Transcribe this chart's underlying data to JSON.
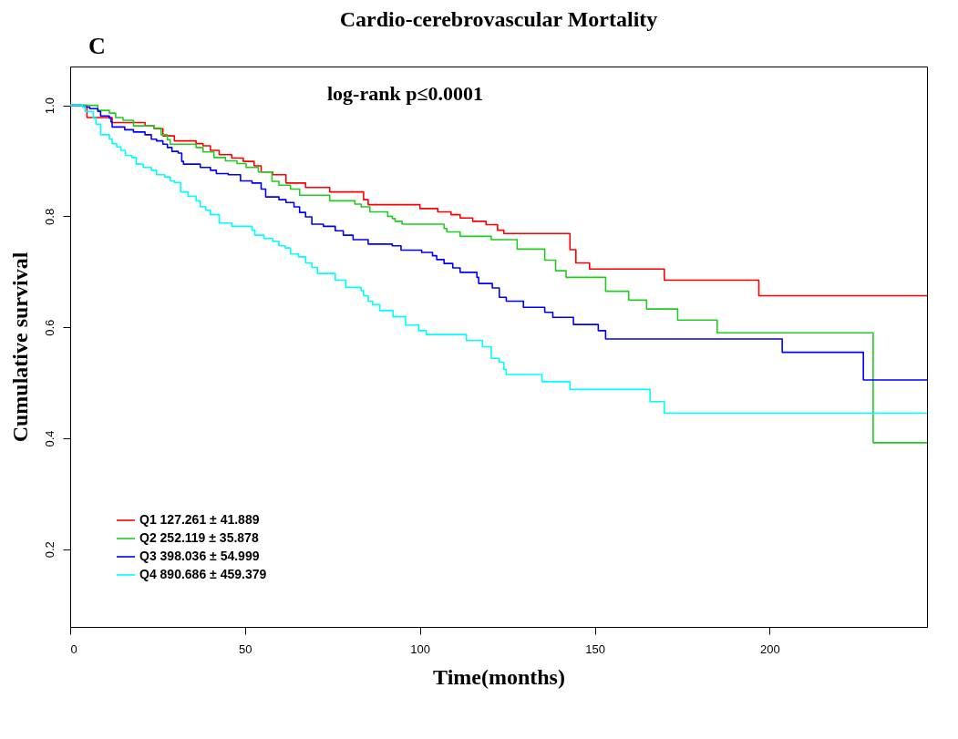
{
  "chart_data": {
    "type": "step",
    "title": "Cardio-cerebrovascular Mortality",
    "xlabel": "Time(months)",
    "ylabel": "Cumulative survival",
    "annotations": [
      "C",
      "log-rank p≤0.0001"
    ],
    "xlim": [
      0,
      245
    ],
    "ylim": [
      0.06,
      1.07
    ],
    "xticks": [
      0,
      50,
      100,
      150,
      200
    ],
    "yticks": [
      0.2,
      0.4,
      0.6,
      0.8,
      {
        "value": 1,
        "label": "1.0"
      }
    ],
    "grid": false,
    "legend": "bottom left",
    "marker": "none",
    "line_style": "solid",
    "series": [
      {
        "name": "Q1 127.261 ± 41.889",
        "color": "#ff0000",
        "x": [
          0,
          4.8,
          12.0,
          21.4,
          24.0,
          26.5,
          29.8,
          36.0,
          38.0,
          40.1,
          42.6,
          46.2,
          49.5,
          52.6,
          54.6,
          57.9,
          61.7,
          67.3,
          74.2,
          83.9,
          85.2,
          100,
          105.1,
          108.9,
          111.5,
          115.1,
          118.9,
          122.2,
          124.0,
          142.9,
          144.6,
          148.5,
          169.9,
          196.9,
          245
        ],
        "values": [
          1.0,
          0.978,
          0.969,
          0.963,
          0.958,
          0.945,
          0.936,
          0.931,
          0.927,
          0.919,
          0.911,
          0.905,
          0.899,
          0.891,
          0.88,
          0.875,
          0.86,
          0.852,
          0.844,
          0.83,
          0.821,
          0.814,
          0.808,
          0.803,
          0.797,
          0.791,
          0.785,
          0.775,
          0.769,
          0.74,
          0.716,
          0.705,
          0.685,
          0.657,
          0.657
        ]
      },
      {
        "name": "Q2 252.119 ± 35.878",
        "color": "#22cc22",
        "x": [
          0,
          7.9,
          11.2,
          13.0,
          15.1,
          18.1,
          24.0,
          26.0,
          27.8,
          28.6,
          36.0,
          38.0,
          41.1,
          44.4,
          47.7,
          50.3,
          53.8,
          57.7,
          59.7,
          63.0,
          65.6,
          74.2,
          81.4,
          83.2,
          85.7,
          90.8,
          92.1,
          92.9,
          94.9,
          106.9,
          107.7,
          111.5,
          120.4,
          127.8,
          135.7,
          138.8,
          141.8,
          153.1,
          159.7,
          164.8,
          173.7,
          185.0,
          229.6,
          245
        ],
        "values": [
          1.0,
          0.991,
          0.986,
          0.978,
          0.973,
          0.963,
          0.959,
          0.947,
          0.938,
          0.93,
          0.924,
          0.916,
          0.906,
          0.9,
          0.895,
          0.888,
          0.88,
          0.863,
          0.856,
          0.849,
          0.838,
          0.828,
          0.822,
          0.817,
          0.808,
          0.8,
          0.796,
          0.791,
          0.786,
          0.778,
          0.772,
          0.764,
          0.758,
          0.741,
          0.721,
          0.702,
          0.69,
          0.665,
          0.649,
          0.633,
          0.613,
          0.59,
          0.392,
          0.392
        ]
      },
      {
        "name": "Q3 398.036 ± 54.999",
        "color": "#0000ff",
        "x": [
          0,
          3.6,
          5.6,
          7.9,
          8.7,
          11.2,
          11.7,
          12.0,
          15.6,
          18.1,
          21.4,
          23.2,
          24.7,
          26.5,
          27.8,
          29.1,
          30.9,
          31.9,
          32.4,
          37.2,
          40.1,
          41.8,
          45.2,
          48.7,
          52.0,
          54.6,
          55.9,
          59.7,
          61.7,
          64.0,
          65.6,
          67.3,
          69.1,
          72.4,
          75.8,
          78.1,
          80.9,
          85.2,
          92.1,
          94.6,
          100.5,
          103.6,
          104.8,
          106.9,
          109.4,
          111.5,
          116.3,
          116.8,
          120.7,
          122.7,
          124.7,
          129.6,
          135.7,
          138.0,
          143.9,
          151.0,
          153.1,
          203.6,
          226.8,
          245
        ],
        "values": [
          1.0,
          0.997,
          0.994,
          0.989,
          0.981,
          0.977,
          0.97,
          0.961,
          0.956,
          0.952,
          0.947,
          0.939,
          0.936,
          0.93,
          0.924,
          0.917,
          0.914,
          0.899,
          0.894,
          0.888,
          0.883,
          0.877,
          0.875,
          0.864,
          0.86,
          0.849,
          0.835,
          0.83,
          0.825,
          0.817,
          0.807,
          0.799,
          0.786,
          0.782,
          0.774,
          0.766,
          0.758,
          0.75,
          0.747,
          0.739,
          0.735,
          0.729,
          0.722,
          0.715,
          0.707,
          0.699,
          0.69,
          0.679,
          0.671,
          0.654,
          0.647,
          0.636,
          0.627,
          0.618,
          0.605,
          0.594,
          0.579,
          0.555,
          0.505,
          0.505
        ]
      },
      {
        "name": "Q4 890.686 ± 459.379",
        "color": "#00ffff",
        "x": [
          0,
          3.6,
          4.3,
          6.6,
          7.4,
          8.7,
          11.2,
          12.0,
          13.3,
          14.5,
          15.8,
          17.6,
          18.9,
          20.9,
          23.2,
          24.7,
          27.0,
          28.6,
          29.8,
          31.6,
          33.7,
          36.0,
          37.2,
          38.8,
          40.1,
          42.6,
          46.2,
          52.0,
          52.8,
          55.4,
          57.9,
          59.7,
          61.5,
          63.0,
          65.3,
          67.3,
          69.1,
          70.7,
          75.8,
          78.8,
          83.2,
          83.9,
          85.2,
          86.5,
          88.5,
          92.3,
          95.9,
          99.7,
          101.8,
          113.3,
          117.9,
          120.4,
          122.7,
          124.0,
          124.7,
          134.9,
          142.9,
          165.8,
          169.9,
          245
        ],
        "values": [
          1.0,
          0.997,
          0.989,
          0.977,
          0.966,
          0.947,
          0.939,
          0.931,
          0.925,
          0.919,
          0.91,
          0.906,
          0.894,
          0.888,
          0.883,
          0.875,
          0.871,
          0.864,
          0.861,
          0.844,
          0.836,
          0.828,
          0.817,
          0.811,
          0.803,
          0.788,
          0.782,
          0.775,
          0.766,
          0.76,
          0.755,
          0.747,
          0.743,
          0.732,
          0.727,
          0.716,
          0.708,
          0.697,
          0.685,
          0.672,
          0.666,
          0.657,
          0.647,
          0.641,
          0.63,
          0.619,
          0.604,
          0.594,
          0.587,
          0.576,
          0.565,
          0.544,
          0.537,
          0.524,
          0.515,
          0.502,
          0.488,
          0.466,
          0.445,
          0.445
        ]
      }
    ]
  }
}
